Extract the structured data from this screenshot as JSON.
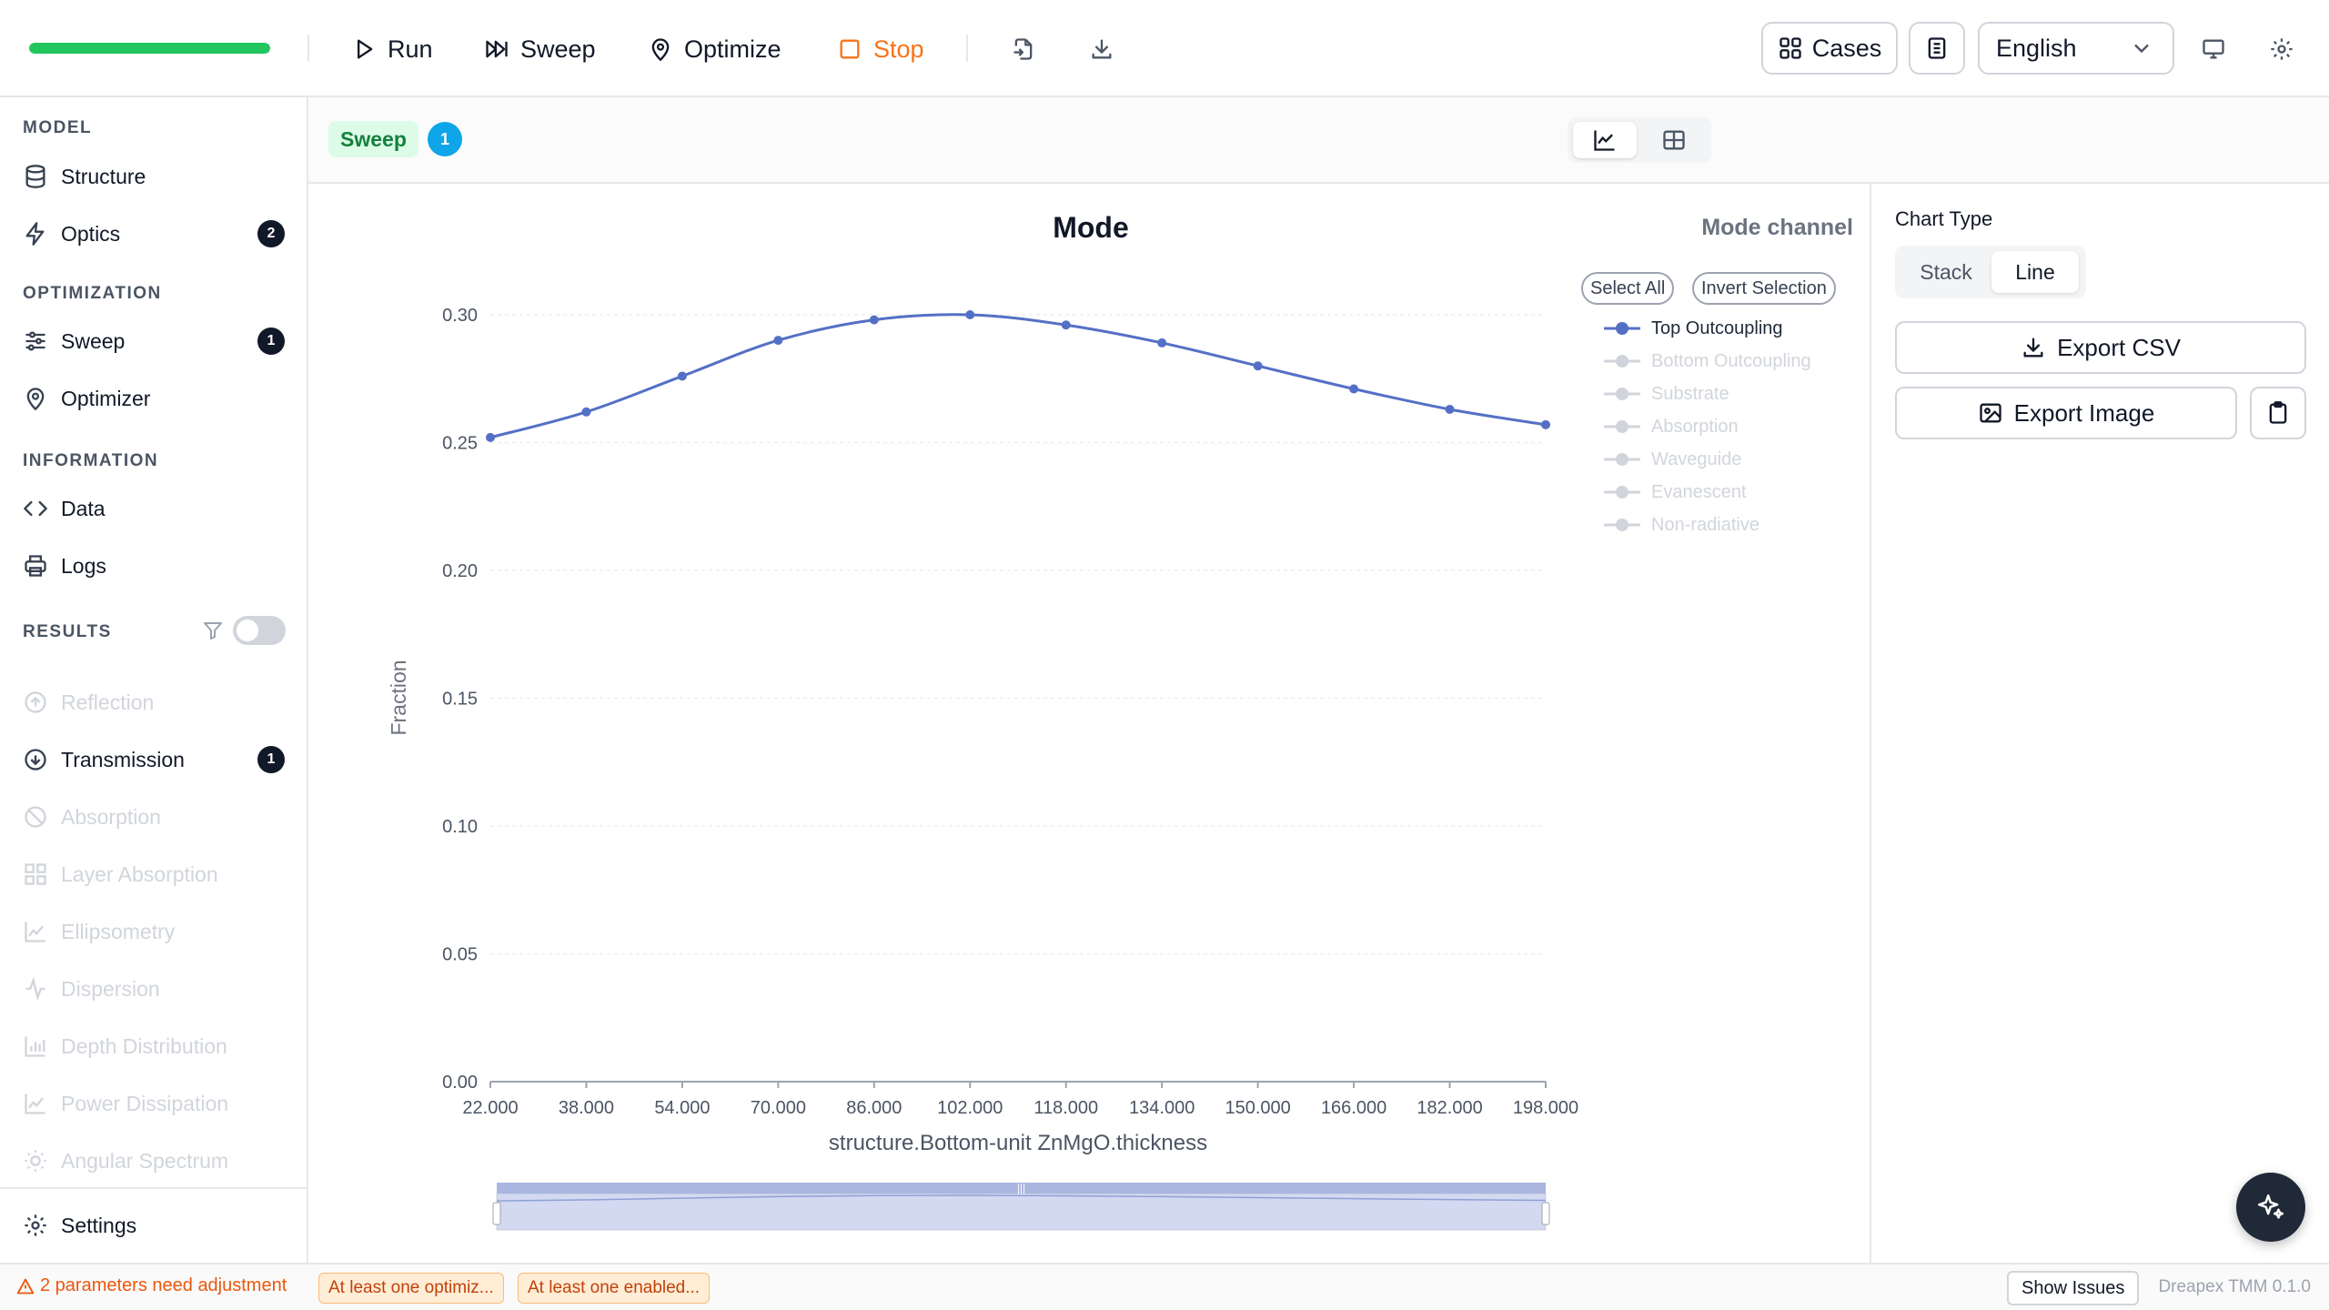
{
  "toolbar": {
    "progress_percent": 100,
    "progress_color": "#22c55e",
    "run_label": "Run",
    "sweep_label": "Sweep",
    "optimize_label": "Optimize",
    "stop_label": "Stop",
    "stop_color": "#f97316",
    "import_icon": "file-import-icon",
    "download_icon": "download-icon",
    "cases_label": "Cases",
    "notes_icon": "notes-icon",
    "language": "English",
    "monitor_icon": "monitor-icon",
    "settings_icon": "gear-icon"
  },
  "sidebar": {
    "sections": [
      {
        "title": "MODEL",
        "items": [
          {
            "label": "Structure",
            "icon": "database-icon"
          },
          {
            "label": "Optics",
            "icon": "bolt-icon",
            "badge": "2"
          }
        ]
      },
      {
        "title": "OPTIMIZATION",
        "items": [
          {
            "label": "Sweep",
            "icon": "sliders-icon",
            "badge": "1"
          },
          {
            "label": "Optimizer",
            "icon": "map-pin-icon"
          }
        ]
      },
      {
        "title": "INFORMATION",
        "items": [
          {
            "label": "Data",
            "icon": "code-icon"
          },
          {
            "label": "Logs",
            "icon": "printer-icon"
          }
        ]
      },
      {
        "title": "RESULTS",
        "items": [
          {
            "label": "Reflection",
            "icon": "arrow-up-circle-icon",
            "disabled": true
          },
          {
            "label": "Transmission",
            "icon": "arrow-down-circle-icon",
            "badge": "1"
          },
          {
            "label": "Absorption",
            "icon": "ban-icon",
            "disabled": true
          },
          {
            "label": "Layer Absorption",
            "icon": "layout-grid-icon",
            "disabled": true
          },
          {
            "label": "Ellipsometry",
            "icon": "area-chart-icon",
            "disabled": true
          },
          {
            "label": "Dispersion",
            "icon": "activity-icon",
            "disabled": true
          },
          {
            "label": "Depth Distribution",
            "icon": "bar-chart-icon",
            "disabled": true
          },
          {
            "label": "Power Dissipation",
            "icon": "area-chart-icon",
            "disabled": true
          },
          {
            "label": "Angular Spectrum",
            "icon": "sun-icon",
            "disabled": true
          }
        ]
      }
    ],
    "results_filter_icon": "filter-icon",
    "results_toggle_on": false,
    "settings_label": "Settings"
  },
  "subheader": {
    "chip_label": "Sweep",
    "chip_count": "1",
    "view_chart_icon": "line-chart-icon",
    "view_table_icon": "table-icon"
  },
  "chart_data": {
    "type": "line",
    "title": "Mode",
    "xlabel": "structure.Bottom-unit ZnMgO.thickness",
    "ylabel": "Fraction",
    "x": [
      22,
      38,
      54,
      70,
      86,
      102,
      118,
      134,
      150,
      166,
      182,
      198
    ],
    "x_tick_labels": [
      "22.000",
      "38.000",
      "54.000",
      "70.000",
      "86.000",
      "102.000",
      "118.000",
      "134.000",
      "150.000",
      "166.000",
      "182.000",
      "198.000"
    ],
    "ylim": [
      0,
      0.3
    ],
    "y_ticks": [
      "0.00",
      "0.05",
      "0.10",
      "0.15",
      "0.20",
      "0.25",
      "0.30"
    ],
    "grid": true,
    "series": [
      {
        "name": "Top Outcoupling",
        "visible": true,
        "color": "#5470c6",
        "values": [
          0.252,
          0.262,
          0.276,
          0.29,
          0.298,
          0.3,
          0.296,
          0.289,
          0.28,
          0.271,
          0.263,
          0.257
        ]
      },
      {
        "name": "Bottom Outcoupling",
        "visible": false
      },
      {
        "name": "Substrate",
        "visible": false
      },
      {
        "name": "Absorption",
        "visible": false
      },
      {
        "name": "Waveguide",
        "visible": false
      },
      {
        "name": "Evanescent",
        "visible": false
      },
      {
        "name": "Non-radiative",
        "visible": false
      }
    ],
    "legend": {
      "title": "Mode channel",
      "placement": "right",
      "select_all_label": "Select All",
      "invert_label": "Invert Selection"
    },
    "datazoom": {
      "start_percent": 0,
      "end_percent": 100
    }
  },
  "right_panel": {
    "chart_type_title": "Chart Type",
    "chart_types": [
      "Stack",
      "Line"
    ],
    "chart_type_selected": "Line",
    "export_csv_label": "Export CSV",
    "export_image_label": "Export Image",
    "clipboard_icon": "clipboard-icon"
  },
  "fab_icon": "sparkles-icon",
  "status": {
    "warning_icon": "warning-triangle-icon",
    "warning_text": "2 parameters need adjustment",
    "chips": [
      "At least one optimiz...",
      "At least one enabled..."
    ],
    "show_issues_label": "Show Issues",
    "version": "Dreapex TMM 0.1.0"
  }
}
